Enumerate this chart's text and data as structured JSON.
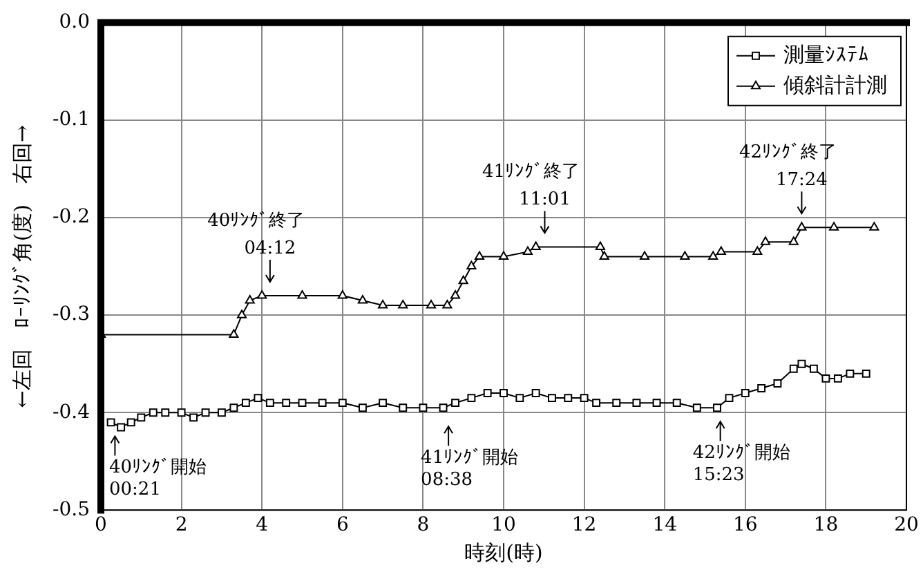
{
  "chart_data": {
    "type": "line",
    "xlabel": "時刻(時)",
    "ylabel": "←左回　ﾛｰﾘﾝｸﾞ角(度)　右回→",
    "xlim": [
      0,
      20
    ],
    "xticks": [
      0,
      2,
      4,
      6,
      8,
      10,
      12,
      14,
      16,
      18,
      20
    ],
    "ylim": [
      -0.5,
      0
    ],
    "yticks": [
      {
        "value": 0,
        "label": "0.0"
      },
      -0.1,
      -0.2,
      -0.3,
      -0.4,
      -0.5
    ],
    "grid": true,
    "legend": "top right",
    "line_style": "solid",
    "series": [
      {
        "name": "測量ｼｽﾃﾑ",
        "color": "#000000",
        "marker": "square",
        "x": [
          0.25,
          0.5,
          0.75,
          1.0,
          1.3,
          1.6,
          2.0,
          2.3,
          2.6,
          3.0,
          3.3,
          3.6,
          3.9,
          4.2,
          4.6,
          5.0,
          5.5,
          6.0,
          6.5,
          7.0,
          7.5,
          8.0,
          8.5,
          8.8,
          9.2,
          9.6,
          10.0,
          10.4,
          10.8,
          11.2,
          11.6,
          12.0,
          12.3,
          12.8,
          13.3,
          13.8,
          14.3,
          14.8,
          15.3,
          15.6,
          16.0,
          16.4,
          16.8,
          17.2,
          17.4,
          17.7,
          18.0,
          18.3,
          18.6,
          19.0
        ],
        "values": [
          -0.41,
          -0.415,
          -0.41,
          -0.405,
          -0.4,
          -0.4,
          -0.4,
          -0.405,
          -0.4,
          -0.4,
          -0.395,
          -0.39,
          -0.385,
          -0.39,
          -0.39,
          -0.39,
          -0.39,
          -0.39,
          -0.395,
          -0.39,
          -0.395,
          -0.395,
          -0.395,
          -0.39,
          -0.385,
          -0.38,
          -0.38,
          -0.385,
          -0.38,
          -0.385,
          -0.385,
          -0.385,
          -0.39,
          -0.39,
          -0.39,
          -0.39,
          -0.39,
          -0.395,
          -0.395,
          -0.385,
          -0.38,
          -0.375,
          -0.37,
          -0.355,
          -0.35,
          -0.355,
          -0.365,
          -0.365,
          -0.36,
          -0.36
        ]
      },
      {
        "name": "傾斜計計測",
        "color": "#000000",
        "marker": "triangle",
        "x": [
          0,
          3.3,
          3.5,
          3.7,
          4.0,
          5.0,
          6.0,
          6.5,
          7.0,
          7.5,
          8.2,
          8.6,
          8.8,
          9.0,
          9.2,
          9.4,
          10.0,
          10.6,
          10.8,
          12.4,
          12.5,
          13.5,
          14.5,
          15.2,
          15.4,
          16.3,
          16.5,
          17.2,
          17.4,
          18.2,
          19.2
        ],
        "values": [
          -0.32,
          -0.32,
          -0.3,
          -0.285,
          -0.28,
          -0.28,
          -0.28,
          -0.285,
          -0.29,
          -0.29,
          -0.29,
          -0.29,
          -0.28,
          -0.265,
          -0.25,
          -0.24,
          -0.24,
          -0.235,
          -0.23,
          -0.23,
          -0.24,
          -0.24,
          -0.24,
          -0.24,
          -0.235,
          -0.235,
          -0.225,
          -0.225,
          -0.21,
          -0.21,
          -0.21
        ]
      }
    ],
    "annotations": [
      {
        "text": "40ﾘﾝｸﾞ終了\n04:12",
        "x": 4.2,
        "y": -0.28
      },
      {
        "text": "41ﾘﾝｸﾞ終了\n11:01",
        "x": 11.02,
        "y": -0.23
      },
      {
        "text": "42ﾘﾝｸﾞ終了\n17:24",
        "x": 17.4,
        "y": -0.21
      },
      {
        "text": "40ﾘﾝｸﾞ開始\n00:21",
        "x": 0.35,
        "y": -0.41
      },
      {
        "text": "41ﾘﾝｸﾞ開始\n08:38",
        "x": 8.63,
        "y": -0.4
      },
      {
        "text": "42ﾘﾝｸﾞ開始\n15:23",
        "x": 15.38,
        "y": -0.395
      }
    ]
  }
}
